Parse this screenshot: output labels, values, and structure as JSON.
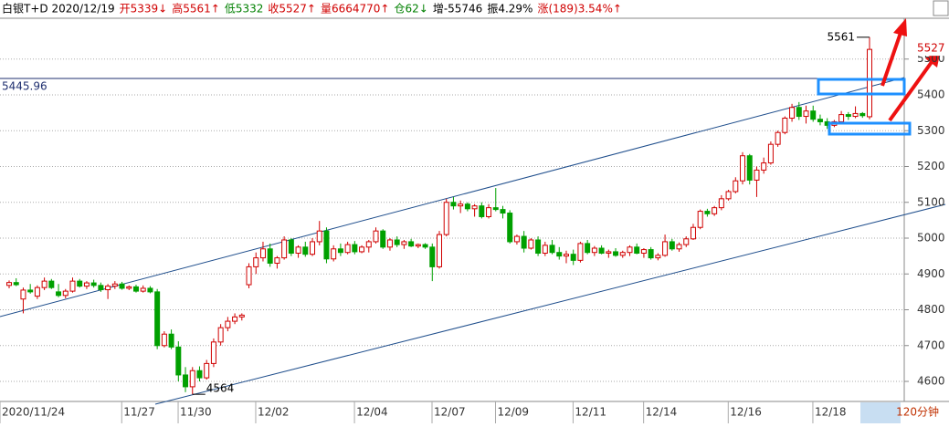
{
  "chart_data": {
    "type": "candlestick",
    "header": [
      {
        "text": "白银T+D 2020/12/19",
        "color": "#000000"
      },
      {
        "text": "开5339↓",
        "color": "#d00000"
      },
      {
        "text": "高5561↑",
        "color": "#d00000"
      },
      {
        "text": "低5332",
        "color": "#008000"
      },
      {
        "text": "收5527↑",
        "color": "#d00000"
      },
      {
        "text": "量6664770↑",
        "color": "#d00000"
      },
      {
        "text": "仓62↓",
        "color": "#008000"
      },
      {
        "text": "增-55746",
        "color": "#000000"
      },
      {
        "text": "振4.29%",
        "color": "#000000"
      },
      {
        "text": "涨(189)3.54%↑",
        "color": "#d00000"
      }
    ],
    "period": "120分钟",
    "up_color": "#d00000",
    "down_color": "#00a000",
    "ylim": [
      4544,
      5614
    ],
    "yticks": [
      4600,
      4700,
      4800,
      4900,
      5000,
      5100,
      5200,
      5300,
      5400,
      5500
    ],
    "grid": true,
    "ref_line": 5445.96,
    "annotations": {
      "high": 5561,
      "low": 4564,
      "last": 5527
    },
    "categories": [
      "2020/11/24",
      null,
      null,
      null,
      null,
      null,
      null,
      null,
      null,
      null,
      null,
      null,
      null,
      null,
      null,
      null,
      null,
      "11/27",
      null,
      null,
      null,
      null,
      null,
      null,
      null,
      "11/30",
      null,
      null,
      null,
      null,
      null,
      null,
      null,
      null,
      null,
      null,
      "12/02",
      null,
      null,
      null,
      null,
      null,
      null,
      null,
      null,
      null,
      null,
      null,
      null,
      null,
      "12/04",
      null,
      null,
      null,
      null,
      null,
      null,
      null,
      null,
      null,
      null,
      "12/07",
      null,
      null,
      null,
      null,
      null,
      null,
      null,
      null,
      "12/09",
      null,
      null,
      null,
      null,
      null,
      null,
      null,
      null,
      null,
      null,
      "12/11",
      null,
      null,
      null,
      null,
      null,
      null,
      null,
      null,
      null,
      "12/14",
      null,
      null,
      null,
      null,
      null,
      null,
      null,
      null,
      null,
      null,
      null,
      "12/16",
      null,
      null,
      null,
      null,
      null,
      null,
      null,
      null,
      null,
      null,
      null,
      "12/18",
      null,
      null,
      null,
      null,
      null,
      null,
      null
    ],
    "ohlc": [
      [
        4868,
        4882,
        4860,
        4876
      ],
      [
        4876,
        4888,
        4866,
        4870
      ],
      [
        4830,
        4862,
        4790,
        4855
      ],
      [
        4855,
        4872,
        4845,
        4850
      ],
      [
        4838,
        4868,
        4830,
        4862
      ],
      [
        4862,
        4890,
        4855,
        4880
      ],
      [
        4880,
        4886,
        4858,
        4862
      ],
      [
        4850,
        4872,
        4835,
        4840
      ],
      [
        4840,
        4858,
        4832,
        4852
      ],
      [
        4852,
        4890,
        4848,
        4880
      ],
      [
        4880,
        4886,
        4862,
        4866
      ],
      [
        4866,
        4880,
        4858,
        4875
      ],
      [
        4875,
        4884,
        4862,
        4868
      ],
      [
        4868,
        4876,
        4850,
        4856
      ],
      [
        4856,
        4872,
        4830,
        4866
      ],
      [
        4866,
        4880,
        4858,
        4872
      ],
      [
        4872,
        4878,
        4856,
        4860
      ],
      [
        4860,
        4868,
        4855,
        4864
      ],
      [
        4864,
        4870,
        4848,
        4852
      ],
      [
        4852,
        4868,
        4848,
        4860
      ],
      [
        4860,
        4866,
        4846,
        4850
      ],
      [
        4850,
        4858,
        4690,
        4700
      ],
      [
        4700,
        4740,
        4695,
        4732
      ],
      [
        4732,
        4745,
        4690,
        4696
      ],
      [
        4696,
        4712,
        4600,
        4618
      ],
      [
        4618,
        4640,
        4570,
        4585
      ],
      [
        4585,
        4640,
        4564,
        4630
      ],
      [
        4630,
        4642,
        4600,
        4610
      ],
      [
        4610,
        4660,
        4605,
        4650
      ],
      [
        4650,
        4720,
        4640,
        4710
      ],
      [
        4710,
        4760,
        4700,
        4750
      ],
      [
        4750,
        4780,
        4740,
        4768
      ],
      [
        4768,
        4790,
        4760,
        4780
      ],
      [
        4780,
        4790,
        4770,
        4785
      ],
      [
        4870,
        4930,
        4860,
        4920
      ],
      [
        4920,
        4960,
        4900,
        4945
      ],
      [
        4945,
        4990,
        4935,
        4970
      ],
      [
        4970,
        4985,
        4920,
        4930
      ],
      [
        4930,
        4950,
        4915,
        4945
      ],
      [
        4945,
        5005,
        4940,
        4995
      ],
      [
        4995,
        5000,
        4950,
        4958
      ],
      [
        4958,
        4980,
        4945,
        4975
      ],
      [
        4975,
        4990,
        4948,
        4955
      ],
      [
        4955,
        5000,
        4950,
        4990
      ],
      [
        4990,
        5048,
        4980,
        5020
      ],
      [
        5020,
        5030,
        4930,
        4942
      ],
      [
        4942,
        4980,
        4935,
        4970
      ],
      [
        4970,
        4985,
        4950,
        4960
      ],
      [
        4960,
        4990,
        4955,
        4982
      ],
      [
        4982,
        4992,
        4955,
        4962
      ],
      [
        4962,
        4980,
        4958,
        4975
      ],
      [
        4975,
        4995,
        4960,
        4990
      ],
      [
        4990,
        5030,
        4985,
        5020
      ],
      [
        5020,
        5025,
        4970,
        4975
      ],
      [
        4975,
        5000,
        4965,
        4995
      ],
      [
        4995,
        5005,
        4975,
        4982
      ],
      [
        4982,
        4995,
        4970,
        4990
      ],
      [
        4990,
        4998,
        4975,
        4978
      ],
      [
        4978,
        4985,
        4972,
        4982
      ],
      [
        4982,
        4986,
        4970,
        4975
      ],
      [
        4975,
        4985,
        4880,
        4920
      ],
      [
        4920,
        5020,
        4915,
        5010
      ],
      [
        5010,
        5110,
        5005,
        5100
      ],
      [
        5100,
        5115,
        5080,
        5090
      ],
      [
        5090,
        5105,
        5070,
        5095
      ],
      [
        5095,
        5100,
        5075,
        5082
      ],
      [
        5082,
        5095,
        5060,
        5090
      ],
      [
        5090,
        5100,
        5055,
        5060
      ],
      [
        5060,
        5095,
        5055,
        5085
      ],
      [
        5085,
        5140,
        5075,
        5080
      ],
      [
        5080,
        5090,
        5055,
        5070
      ],
      [
        5070,
        5078,
        4985,
        4990
      ],
      [
        4990,
        5010,
        4982,
        5005
      ],
      [
        5005,
        5020,
        4960,
        4972
      ],
      [
        4972,
        5000,
        4968,
        4995
      ],
      [
        4995,
        5005,
        4950,
        4958
      ],
      [
        4958,
        4990,
        4950,
        4980
      ],
      [
        4980,
        4995,
        4955,
        4960
      ],
      [
        4960,
        4975,
        4940,
        4950
      ],
      [
        4950,
        4965,
        4930,
        4955
      ],
      [
        4955,
        4968,
        4925,
        4938
      ],
      [
        4938,
        4990,
        4932,
        4985
      ],
      [
        4985,
        4995,
        4955,
        4960
      ],
      [
        4960,
        4978,
        4950,
        4972
      ],
      [
        4972,
        4980,
        4955,
        4958
      ],
      [
        4958,
        4968,
        4945,
        4962
      ],
      [
        4962,
        4972,
        4948,
        4952
      ],
      [
        4952,
        4965,
        4945,
        4960
      ],
      [
        4960,
        4980,
        4950,
        4975
      ],
      [
        4975,
        4985,
        4955,
        4958
      ],
      [
        4958,
        4972,
        4945,
        4968
      ],
      [
        4968,
        4975,
        4940,
        4945
      ],
      [
        4945,
        4958,
        4938,
        4952
      ],
      [
        4952,
        5010,
        4948,
        4990
      ],
      [
        4990,
        4998,
        4965,
        4970
      ],
      [
        4970,
        4988,
        4962,
        4982
      ],
      [
        4982,
        5005,
        4975,
        4998
      ],
      [
        4998,
        5040,
        4995,
        5030
      ],
      [
        5030,
        5080,
        5025,
        5075
      ],
      [
        5075,
        5082,
        5060,
        5068
      ],
      [
        5068,
        5090,
        5062,
        5085
      ],
      [
        5085,
        5120,
        5078,
        5110
      ],
      [
        5110,
        5135,
        5105,
        5130
      ],
      [
        5130,
        5170,
        5125,
        5160
      ],
      [
        5160,
        5240,
        5150,
        5230
      ],
      [
        5230,
        5235,
        5150,
        5162
      ],
      [
        5162,
        5200,
        5115,
        5190
      ],
      [
        5190,
        5225,
        5180,
        5210
      ],
      [
        5210,
        5270,
        5205,
        5262
      ],
      [
        5262,
        5300,
        5255,
        5295
      ],
      [
        5295,
        5340,
        5290,
        5335
      ],
      [
        5335,
        5375,
        5325,
        5365
      ],
      [
        5365,
        5380,
        5330,
        5340
      ],
      [
        5340,
        5370,
        5320,
        5355
      ],
      [
        5355,
        5370,
        5325,
        5332
      ],
      [
        5332,
        5345,
        5315,
        5325
      ],
      [
        5325,
        5335,
        5305,
        5315
      ],
      [
        5315,
        5330,
        5310,
        5325
      ],
      [
        5325,
        5355,
        5320,
        5345
      ],
      [
        5345,
        5352,
        5330,
        5340
      ],
      [
        5340,
        5368,
        5335,
        5348
      ],
      [
        5348,
        5352,
        5336,
        5342
      ],
      [
        5339,
        5561,
        5332,
        5527
      ]
    ]
  }
}
